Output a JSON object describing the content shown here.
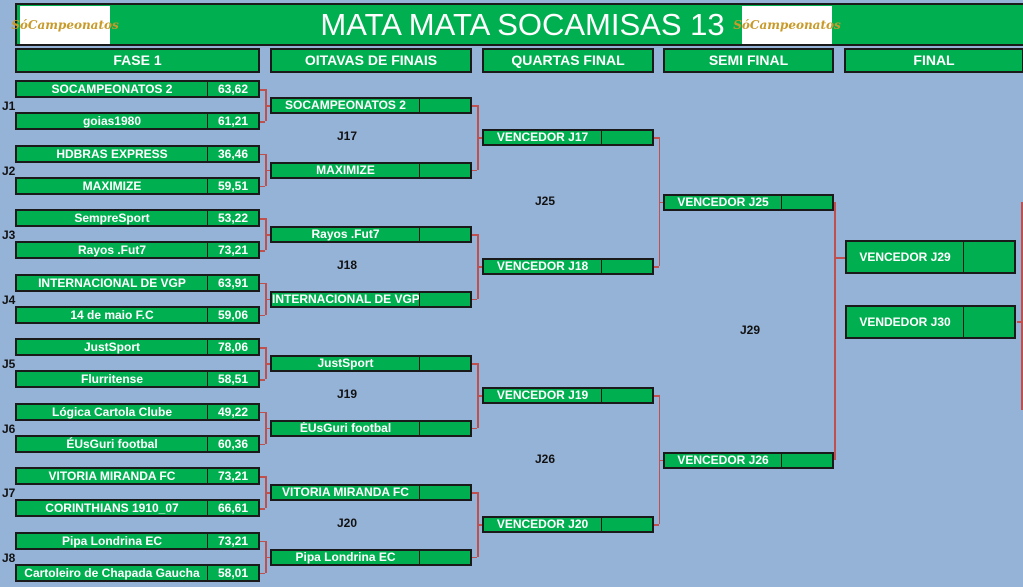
{
  "title": "MATA MATA SOCAMISAS 13",
  "logo_text": "SóCampeonatos",
  "colors": {
    "background": "#95b3d7",
    "box": "#00b050",
    "connector": "#c0504d"
  },
  "headers": [
    "FASE 1",
    "OITAVAS DE FINAIS",
    "QUARTAS FINAL",
    "SEMI FINAL",
    "FINAL"
  ],
  "fase1": [
    {
      "label": "J1",
      "teams": [
        {
          "name": "SOCAMPEONATOS 2",
          "score": "63,62"
        },
        {
          "name": "goias1980",
          "score": "61,21"
        }
      ]
    },
    {
      "label": "J2",
      "teams": [
        {
          "name": "HDBRAS EXPRESS",
          "score": "36,46"
        },
        {
          "name": "MAXIMIZE",
          "score": "59,51"
        }
      ]
    },
    {
      "label": "J3",
      "teams": [
        {
          "name": "SempreSport",
          "score": "53,22"
        },
        {
          "name": "Rayos .Fut7",
          "score": "73,21"
        }
      ]
    },
    {
      "label": "J4",
      "teams": [
        {
          "name": "INTERNACIONAL DE VGP",
          "score": "63,91"
        },
        {
          "name": "14 de maio F.C",
          "score": "59,06"
        }
      ]
    },
    {
      "label": "J5",
      "teams": [
        {
          "name": "JustSport",
          "score": "78,06"
        },
        {
          "name": "Flurritense",
          "score": "58,51"
        }
      ]
    },
    {
      "label": "J6",
      "teams": [
        {
          "name": "Lógica Cartola Clube",
          "score": "49,22"
        },
        {
          "name": "ÉUsGuri footbal",
          "score": "60,36"
        }
      ]
    },
    {
      "label": "J7",
      "teams": [
        {
          "name": "VITORIA MIRANDA FC",
          "score": "73,21"
        },
        {
          "name": "CORINTHIANS 1910_07",
          "score": "66,61"
        }
      ]
    },
    {
      "label": "J8",
      "teams": [
        {
          "name": "Pipa Londrina EC",
          "score": "73,21"
        },
        {
          "name": "Cartoleiro de Chapada Gaucha",
          "score": "58,01"
        }
      ]
    }
  ],
  "oitavas": [
    {
      "label": "J17",
      "teams": [
        "SOCAMPEONATOS 2",
        "MAXIMIZE"
      ]
    },
    {
      "label": "J18",
      "teams": [
        "Rayos .Fut7",
        "INTERNACIONAL DE VGP"
      ]
    },
    {
      "label": "J19",
      "teams": [
        "JustSport",
        "ÉUsGuri footbal"
      ]
    },
    {
      "label": "J20",
      "teams": [
        "VITORIA MIRANDA FC",
        "Pipa Londrina EC"
      ]
    }
  ],
  "quartas": [
    {
      "label": "J25",
      "teams": [
        "VENCEDOR J17",
        "VENCEDOR J18"
      ]
    },
    {
      "label": "J26",
      "teams": [
        "VENCEDOR J19",
        "VENCEDOR J20"
      ]
    }
  ],
  "semi": {
    "label": "J29",
    "teams": [
      "VENCEDOR J25",
      "VENCEDOR J26"
    ]
  },
  "final": {
    "teams": [
      "VENCEDOR J29",
      "VENDEDOR J30"
    ]
  }
}
